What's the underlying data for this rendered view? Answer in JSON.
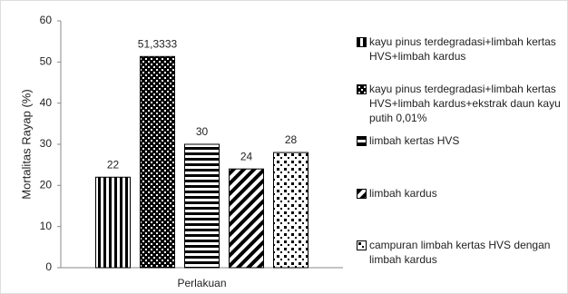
{
  "chart_data": {
    "type": "bar",
    "y_label": "Mortalitas Rayap (%)",
    "categories": [
      "Perlakuan"
    ],
    "ylim": [
      0,
      60
    ],
    "yticks": [
      0,
      10,
      20,
      30,
      40,
      50,
      60
    ],
    "grid": false,
    "legend": "right",
    "series": [
      {
        "name": "kayu pinus terdegradasi+limbah kertas HVS+limbah kardus",
        "color": "#000000",
        "pattern": "vertical",
        "values": [
          22
        ]
      },
      {
        "name": "kayu pinus terdegradasi+limbah kertas HVS+limbah kardus+ekstrak daun kayu putih 0,01%",
        "color": "#000000",
        "pattern": "dots",
        "values": [
          51.3333
        ],
        "value_labels": [
          "51,3333"
        ]
      },
      {
        "name": "limbah kertas HVS",
        "color": "#000000",
        "pattern": "horizontal",
        "values": [
          30
        ]
      },
      {
        "name": "limbah kardus",
        "color": "#000000",
        "pattern": "diagonal",
        "values": [
          24
        ]
      },
      {
        "name": "campuran limbah kertas HVS dengan limbah kardus",
        "color": "#000000",
        "pattern": "squares",
        "values": [
          28
        ]
      }
    ]
  }
}
